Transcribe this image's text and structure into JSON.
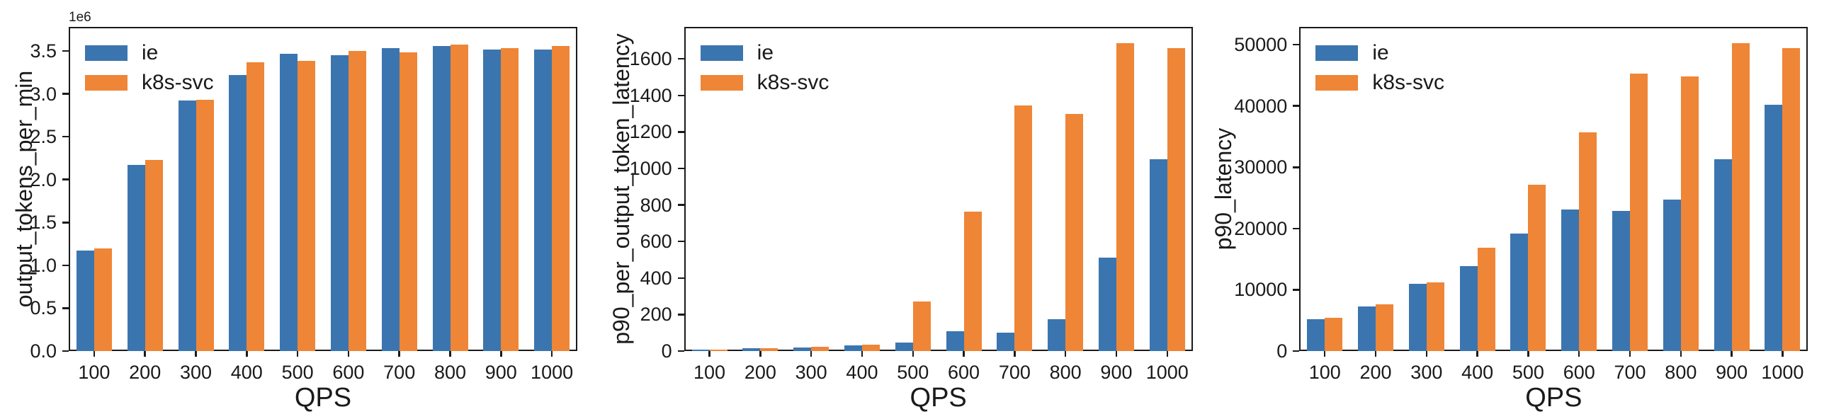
{
  "colors": {
    "ie": "#3b75af",
    "k8s_svc": "#ef8536",
    "axis": "#1a1a1a",
    "background": "#ffffff"
  },
  "chart_data": [
    {
      "type": "bar",
      "id": "output_tokens_per_min",
      "title": "",
      "ylabel": "output_tokens_per_min",
      "xlabel": "QPS",
      "offset_label": "1e6",
      "legend_position": "upper-left",
      "grid": false,
      "categories": [
        "100",
        "200",
        "300",
        "400",
        "500",
        "600",
        "700",
        "800",
        "900",
        "1000"
      ],
      "ylim": [
        0,
        3780000
      ],
      "yticks": [
        {
          "value": 0,
          "label": "0.0"
        },
        {
          "value": 500000,
          "label": "0.5"
        },
        {
          "value": 1000000,
          "label": "1.0"
        },
        {
          "value": 1500000,
          "label": "1.5"
        },
        {
          "value": 2000000,
          "label": "2.0"
        },
        {
          "value": 2500000,
          "label": "2.5"
        },
        {
          "value": 3000000,
          "label": "3.0"
        },
        {
          "value": 3500000,
          "label": "3.5"
        }
      ],
      "series": [
        {
          "name": "ie",
          "color": "#3b75af",
          "values": [
            1170000,
            2170000,
            2920000,
            3220000,
            3470000,
            3450000,
            3530000,
            3560000,
            3520000,
            3520000
          ]
        },
        {
          "name": "k8s-svc",
          "color": "#ef8536",
          "values": [
            1200000,
            2230000,
            2930000,
            3370000,
            3380000,
            3500000,
            3480000,
            3570000,
            3530000,
            3560000
          ]
        }
      ]
    },
    {
      "type": "bar",
      "id": "p90_per_output_token_latency",
      "title": "",
      "ylabel": "p90_per_output_token_latency",
      "xlabel": "QPS",
      "offset_label": "",
      "legend_position": "upper-left",
      "grid": false,
      "categories": [
        "100",
        "200",
        "300",
        "400",
        "500",
        "600",
        "700",
        "800",
        "900",
        "1000"
      ],
      "ylim": [
        0,
        1775
      ],
      "yticks": [
        {
          "value": 0,
          "label": "0"
        },
        {
          "value": 200,
          "label": "200"
        },
        {
          "value": 400,
          "label": "400"
        },
        {
          "value": 600,
          "label": "600"
        },
        {
          "value": 800,
          "label": "800"
        },
        {
          "value": 1000,
          "label": "1000"
        },
        {
          "value": 1200,
          "label": "1200"
        },
        {
          "value": 1400,
          "label": "1400"
        },
        {
          "value": 1600,
          "label": "1600"
        }
      ],
      "series": [
        {
          "name": "ie",
          "color": "#3b75af",
          "values": [
            8,
            14,
            20,
            30,
            45,
            110,
            100,
            175,
            512,
            1050
          ]
        },
        {
          "name": "k8s-svc",
          "color": "#ef8536",
          "values": [
            8,
            15,
            22,
            33,
            270,
            765,
            1345,
            1300,
            1685,
            1660
          ]
        }
      ]
    },
    {
      "type": "bar",
      "id": "p90_latency",
      "title": "",
      "ylabel": "p90_latency",
      "xlabel": "QPS",
      "offset_label": "",
      "legend_position": "upper-left",
      "grid": false,
      "categories": [
        "100",
        "200",
        "300",
        "400",
        "500",
        "600",
        "700",
        "800",
        "900",
        "1000"
      ],
      "ylim": [
        0,
        52900
      ],
      "yticks": [
        {
          "value": 0,
          "label": "0"
        },
        {
          "value": 10000,
          "label": "10000"
        },
        {
          "value": 20000,
          "label": "20000"
        },
        {
          "value": 30000,
          "label": "30000"
        },
        {
          "value": 40000,
          "label": "40000"
        },
        {
          "value": 50000,
          "label": "50000"
        }
      ],
      "series": [
        {
          "name": "ie",
          "color": "#3b75af",
          "values": [
            5200,
            7300,
            10950,
            13900,
            19200,
            23050,
            22850,
            24700,
            31300,
            40200
          ]
        },
        {
          "name": "k8s-svc",
          "color": "#ef8536",
          "values": [
            5450,
            7600,
            11150,
            16850,
            27100,
            35650,
            45300,
            44800,
            50300,
            49400
          ]
        }
      ]
    }
  ]
}
